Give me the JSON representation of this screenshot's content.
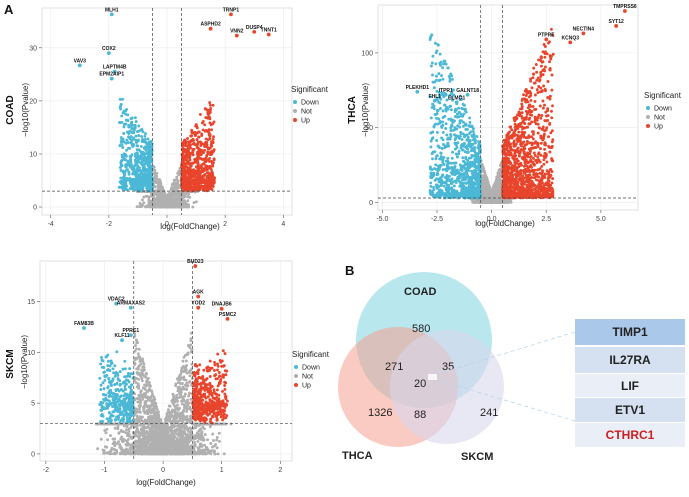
{
  "figure": {
    "panel_a_letter": "A",
    "panel_b_letter": "B"
  },
  "volcano_common": {
    "xlabel": "log(FoldChange)",
    "ylabel": "−log10(Pvalue)",
    "legend_title": "Significant",
    "legend_items": [
      "Down",
      "Not",
      "Up"
    ],
    "colors": {
      "Down": "#4bb8d6",
      "Not": "#b0b0b0",
      "Up": "#e8452c"
    }
  },
  "chart_data": [
    {
      "type": "scatter",
      "title": "COAD",
      "xlabel": "log(FoldChange)",
      "ylabel": "−log10(Pvalue)",
      "xlim": [
        -4.3,
        4.3
      ],
      "ylim": [
        -1.5,
        37.5
      ],
      "xticks": [
        -4,
        -2,
        0,
        2,
        4
      ],
      "yticks": [
        0,
        10,
        20,
        30
      ],
      "fc_threshold": [
        -0.5,
        0.5
      ],
      "p_threshold": 3,
      "labeled_points": [
        {
          "gene": "MLH1",
          "x": -1.9,
          "y": 36.3,
          "group": "Down"
        },
        {
          "gene": "COX2",
          "x": -2.0,
          "y": 29.0,
          "group": "Down"
        },
        {
          "gene": "VAV3",
          "x": -3.0,
          "y": 26.7,
          "group": "Down"
        },
        {
          "gene": "LAPTM4B",
          "x": -1.8,
          "y": 25.5,
          "group": "Down"
        },
        {
          "gene": "EPM2AIP1",
          "x": -1.9,
          "y": 24.2,
          "group": "Down"
        },
        {
          "gene": "TRNP1",
          "x": 2.2,
          "y": 36.3,
          "group": "Up"
        },
        {
          "gene": "ASPHD2",
          "x": 1.5,
          "y": 33.6,
          "group": "Up"
        },
        {
          "gene": "DUSP4",
          "x": 3.0,
          "y": 33.0,
          "group": "Up"
        },
        {
          "gene": "VNN2",
          "x": 2.4,
          "y": 32.3,
          "group": "Up"
        },
        {
          "gene": "TNNT1",
          "x": 3.5,
          "y": 32.5,
          "group": "Up"
        }
      ]
    },
    {
      "type": "scatter",
      "title": "THCA",
      "xlabel": "log(FoldChange)",
      "ylabel": "−log10(Pvalue)",
      "xlim": [
        -5.2,
        6.7
      ],
      "ylim": [
        -5,
        132
      ],
      "xticks": [
        -5.0,
        -2.5,
        0.0,
        2.5,
        5.0
      ],
      "yticks": [
        0,
        50,
        100
      ],
      "fc_threshold": [
        -0.5,
        0.5
      ],
      "p_threshold": 3,
      "labeled_points": [
        {
          "gene": "TMPRSS6",
          "x": 6.1,
          "y": 128,
          "group": "Up"
        },
        {
          "gene": "SYT12",
          "x": 5.7,
          "y": 118,
          "group": "Up"
        },
        {
          "gene": "NECTIN4",
          "x": 4.2,
          "y": 113,
          "group": "Up"
        },
        {
          "gene": "PTPRE",
          "x": 2.5,
          "y": 109,
          "group": "Up"
        },
        {
          "gene": "KCNQ3",
          "x": 3.6,
          "y": 107,
          "group": "Up"
        },
        {
          "gene": "PLEKHD1",
          "x": -3.4,
          "y": 74,
          "group": "Down"
        },
        {
          "gene": "ITPR1",
          "x": -2.1,
          "y": 72,
          "group": "Down"
        },
        {
          "gene": "GALNT18",
          "x": -1.1,
          "y": 72,
          "group": "Down"
        },
        {
          "gene": "FHL1",
          "x": -2.6,
          "y": 68,
          "group": "Down"
        },
        {
          "gene": "ELMO1",
          "x": -1.6,
          "y": 67,
          "group": "Down"
        }
      ]
    },
    {
      "type": "scatter",
      "title": "SKCM",
      "xlabel": "log(FoldChange)",
      "ylabel": "−log10(Pvalue)",
      "xlim": [
        -2.1,
        2.2
      ],
      "ylim": [
        -0.7,
        19
      ],
      "xticks": [
        -2,
        -1,
        0,
        1,
        2
      ],
      "yticks": [
        0,
        5,
        10,
        15
      ],
      "fc_threshold": [
        -0.5,
        0.5
      ],
      "p_threshold": 3,
      "labeled_points": [
        {
          "gene": "BUD23",
          "x": 0.55,
          "y": 18.5,
          "group": "Up"
        },
        {
          "gene": "AGK",
          "x": 0.6,
          "y": 15.5,
          "group": "Up"
        },
        {
          "gene": "VDAC2",
          "x": -0.8,
          "y": 14.8,
          "group": "Down"
        },
        {
          "gene": "ARMAXAS2",
          "x": -0.55,
          "y": 14.4,
          "group": "Down"
        },
        {
          "gene": "YOD2",
          "x": 0.6,
          "y": 14.4,
          "group": "Up"
        },
        {
          "gene": "DNAJB6",
          "x": 1.0,
          "y": 14.3,
          "group": "Up"
        },
        {
          "gene": "PSMC2",
          "x": 1.1,
          "y": 13.3,
          "group": "Up"
        },
        {
          "gene": "FAM83B",
          "x": -1.35,
          "y": 12.4,
          "group": "Down"
        },
        {
          "gene": "PPRC1",
          "x": -0.55,
          "y": 11.7,
          "group": "Down"
        },
        {
          "gene": "KLF11",
          "x": -0.7,
          "y": 11.2,
          "group": "Down"
        }
      ]
    }
  ],
  "venn": {
    "sets": [
      "COAD",
      "THCA",
      "SKCM"
    ],
    "colors": {
      "COAD": "#7fd3e0",
      "THCA": "#f4a090",
      "SKCM": "#d9d7ec"
    },
    "regions": {
      "COAD_only": "580",
      "THCA_only": "1326",
      "SKCM_only": "241",
      "COAD_THCA": "271",
      "COAD_SKCM": "35",
      "THCA_SKCM": "88",
      "all_three": "20"
    }
  },
  "common_genes": [
    {
      "name": "TIMP1",
      "color": "#222222"
    },
    {
      "name": "IL27RA",
      "color": "#222222"
    },
    {
      "name": "LIF",
      "color": "#222222"
    },
    {
      "name": "ETV1",
      "color": "#222222"
    },
    {
      "name": "CTHRC1",
      "color": "#cc1f1f"
    }
  ]
}
